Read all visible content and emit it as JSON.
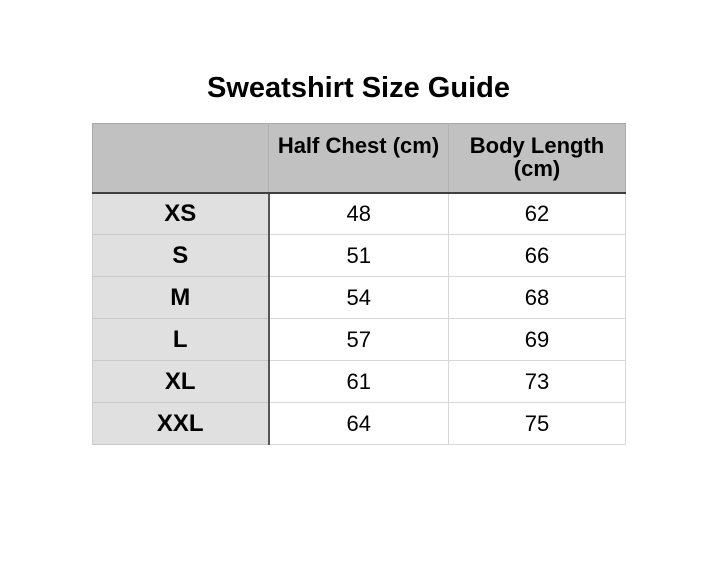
{
  "title": "Sweatshirt Size Guide",
  "size_table": {
    "corner_label": "",
    "columns": [
      "Half Chest (cm)",
      "Body Length (cm)"
    ],
    "rows": [
      {
        "size": "XS",
        "half_chest": "48",
        "body_length": "62"
      },
      {
        "size": "S",
        "half_chest": "51",
        "body_length": "66"
      },
      {
        "size": "M",
        "half_chest": "54",
        "body_length": "68"
      },
      {
        "size": "L",
        "half_chest": "57",
        "body_length": "69"
      },
      {
        "size": "XL",
        "half_chest": "61",
        "body_length": "73"
      },
      {
        "size": "XXL",
        "half_chest": "64",
        "body_length": "75"
      }
    ],
    "colors": {
      "background": "#ffffff",
      "header_bg": "#c1c1c1",
      "row_label_bg": "#e0e0e0",
      "dark_border": "#3f3f3f",
      "label_column_border": "#565656",
      "light_border": "#d7d7d7",
      "text": "#000000"
    }
  }
}
